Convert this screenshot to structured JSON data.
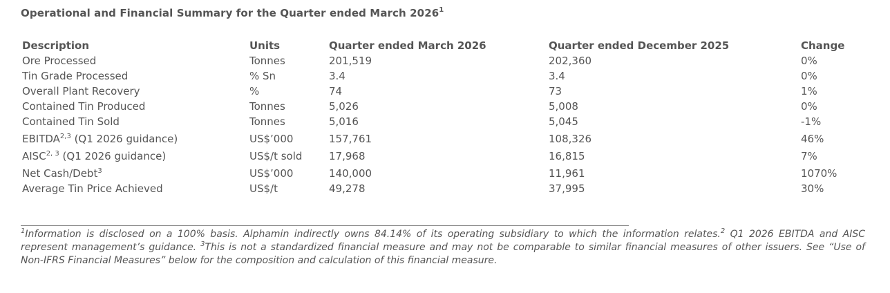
{
  "title": {
    "text": "Operational and Financial Summary for the Quarter ended March 2026",
    "sup": "1"
  },
  "table": {
    "headers": {
      "description": "Description",
      "units": "Units",
      "q_current": "Quarter ended March 2026",
      "q_prior": "Quarter ended December 2025",
      "change": "Change"
    },
    "rows": [
      {
        "desc": "Ore Processed",
        "units": "Tonnes",
        "q1": "201,519",
        "q2": "202,360",
        "change": "0%"
      },
      {
        "desc": "Tin Grade Processed",
        "units": "% Sn",
        "q1": "3.4",
        "q2": "3.4",
        "change": "0%"
      },
      {
        "desc": "Overall Plant Recovery",
        "units": "%",
        "q1": "74",
        "q2": "73",
        "change": "1%"
      },
      {
        "desc": "Contained Tin Produced",
        "units": "Tonnes",
        "q1": "5,026",
        "q2": "5,008",
        "change": "0%"
      },
      {
        "desc": "Contained Tin Sold",
        "units": "Tonnes",
        "q1": "5,016",
        "q2": "5,045",
        "change": "-1%"
      },
      {
        "desc_main": "EBITDA",
        "desc_sup": "2,3",
        "desc_tail": " (Q1 2026 guidance)",
        "units": "US$’000",
        "q1": "157,761",
        "q2": "108,326",
        "change": "46%"
      },
      {
        "desc_main": "AISC",
        "desc_sup": "2, 3",
        "desc_tail": " (Q1 2026 guidance)",
        "units": "US$/t sold",
        "q1": "17,968",
        "q2": "16,815",
        "change": "7%"
      },
      {
        "desc_main": "Net Cash/Debt",
        "desc_sup": "3",
        "desc_tail": "",
        "units": "US$’000",
        "q1": "140,000",
        "q2": "11,961",
        "change": "1070%"
      },
      {
        "desc": "Average Tin Price Achieved",
        "units": "US$/t",
        "q1": "49,278",
        "q2": "37,995",
        "change": "30%"
      }
    ]
  },
  "footnote": {
    "sup1": "1",
    "text1": "Information is disclosed on a 100% basis. Alphamin indirectly owns 84.14% of its operating subsidiary to which the information relates.",
    "sup2": "2",
    "text2": " Q1 2026 EBITDA and AISC represent management’s guidance. ",
    "sup3": "3",
    "text3": "This is not a standardized financial measure and may not be comparable to similar financial measures of other issuers. See “Use of Non-IFRS Financial Measures” below for the composition and calculation of this financial measure."
  }
}
